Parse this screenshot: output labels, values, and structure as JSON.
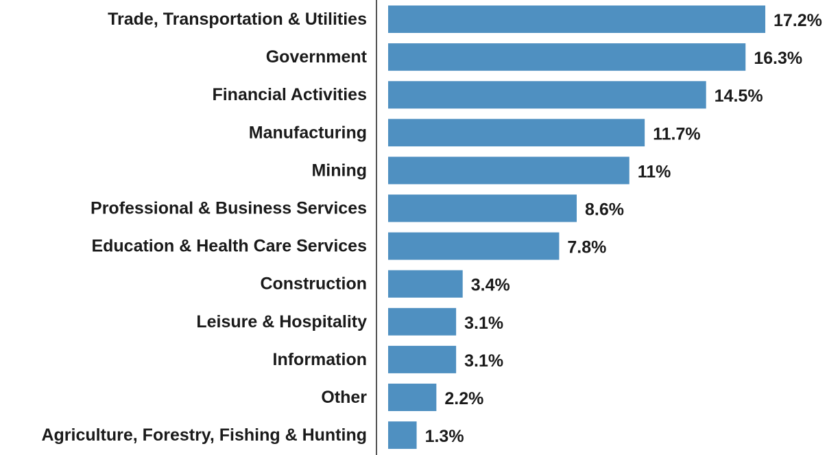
{
  "chart_data": {
    "type": "bar",
    "orientation": "horizontal",
    "title": "",
    "xlabel": "",
    "ylabel": "",
    "categories": [
      "Trade, Transportation & Utilities",
      "Government",
      "Financial Activities",
      "Manufacturing",
      "Mining",
      "Professional & Business Services",
      "Education & Health Care Services",
      "Construction",
      "Leisure & Hospitality",
      "Information",
      "Other",
      "Agriculture, Forestry, Fishing & Hunting"
    ],
    "values": [
      17.2,
      16.3,
      14.5,
      11.7,
      11,
      8.6,
      7.8,
      3.4,
      3.1,
      3.1,
      2.2,
      1.3
    ],
    "value_labels": [
      "17.2%",
      "16.3%",
      "14.5%",
      "11.7%",
      "11%",
      "8.6%",
      "7.8%",
      "3.4%",
      "3.1%",
      "3.1%",
      "2.2%",
      "1.3%"
    ],
    "unit": "%",
    "xlim": [
      0,
      17.2
    ],
    "grid": false,
    "legend": "none",
    "bar_color": "#4f90c1",
    "axis_color": "#555555",
    "text_color": "#1a1a1a"
  }
}
